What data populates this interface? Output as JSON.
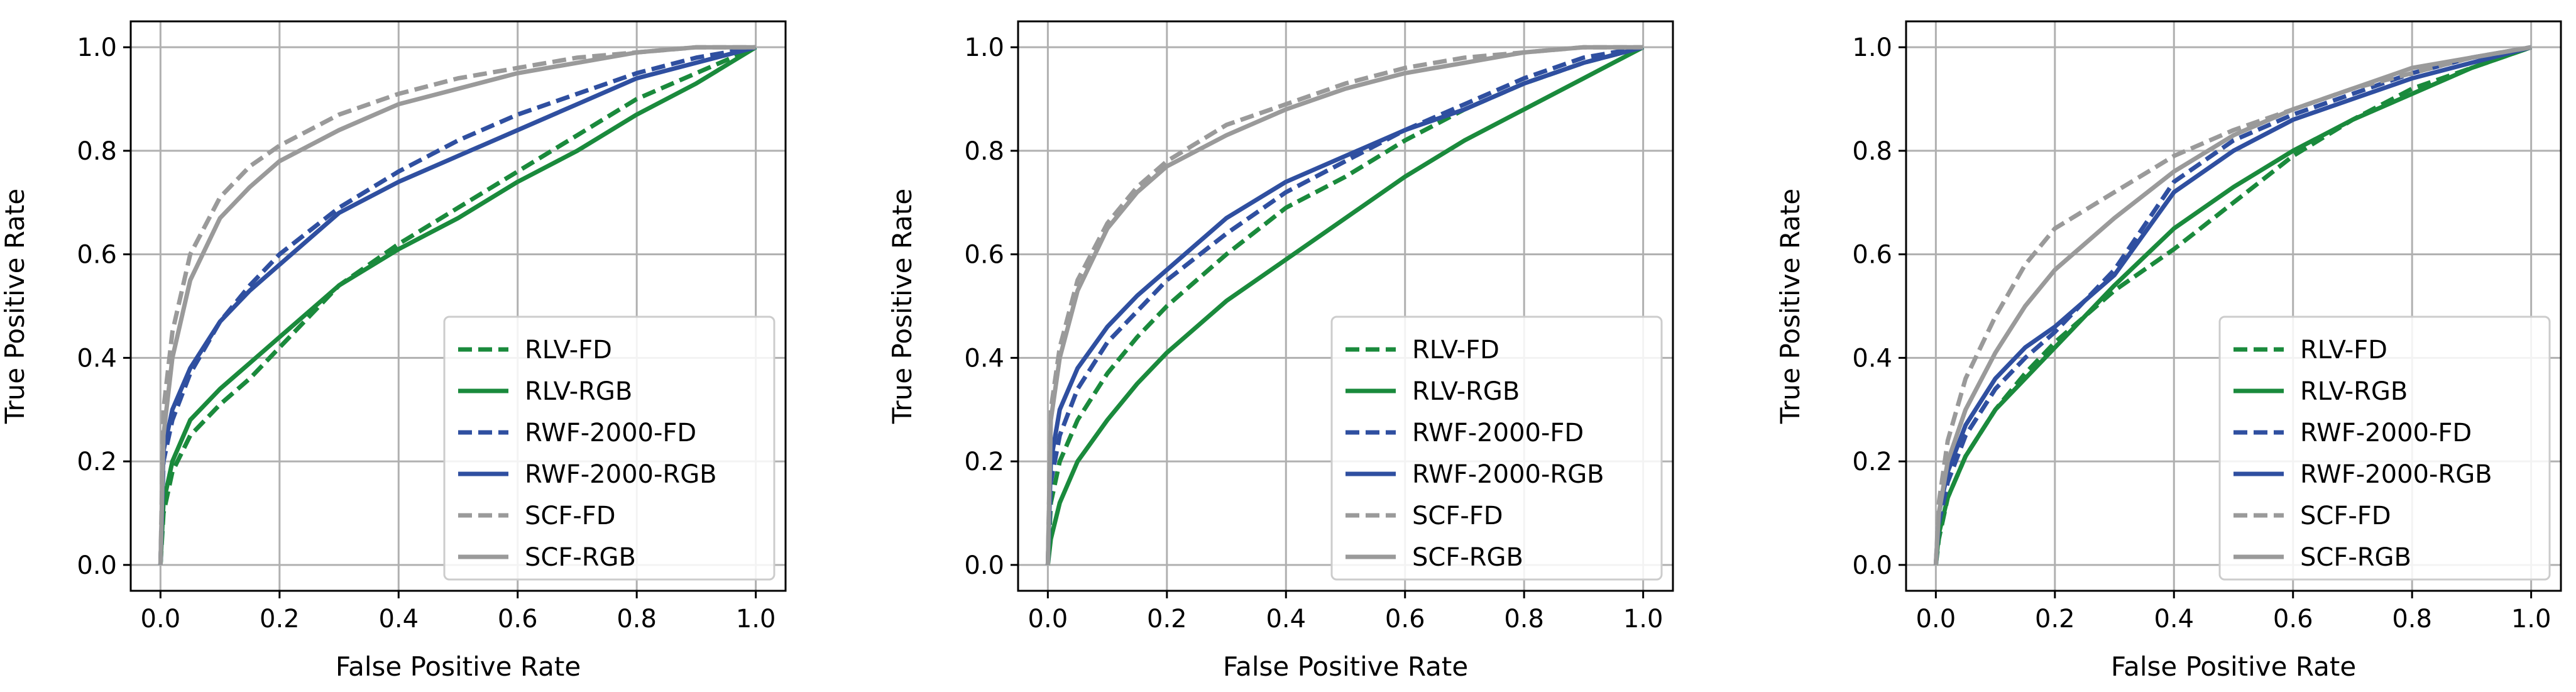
{
  "chart_data": [
    {
      "type": "line",
      "title": "",
      "xlabel": "False Positive Rate",
      "ylabel": "True Positive Rate",
      "xlim": [
        -0.05,
        1.05
      ],
      "ylim": [
        -0.05,
        1.05
      ],
      "xticks": [
        0.0,
        0.2,
        0.4,
        0.6,
        0.8,
        1.0
      ],
      "yticks": [
        0.0,
        0.2,
        0.4,
        0.6,
        0.8,
        1.0
      ],
      "tick_labels": [
        "0.0",
        "0.2",
        "0.4",
        "0.6",
        "0.8",
        "1.0"
      ],
      "grid": true,
      "legend_position": "lower-right",
      "series": [
        {
          "name": "RLV-FD",
          "color": "#1a8a3c",
          "style": "dashed",
          "x": [
            0,
            0.005,
            0.02,
            0.05,
            0.1,
            0.15,
            0.2,
            0.3,
            0.4,
            0.5,
            0.6,
            0.7,
            0.8,
            0.9,
            1.0
          ],
          "y": [
            0,
            0.1,
            0.18,
            0.25,
            0.31,
            0.36,
            0.42,
            0.54,
            0.62,
            0.69,
            0.76,
            0.83,
            0.9,
            0.95,
            1.0
          ]
        },
        {
          "name": "RLV-RGB",
          "color": "#1a8a3c",
          "style": "solid",
          "x": [
            0,
            0.005,
            0.02,
            0.05,
            0.1,
            0.15,
            0.2,
            0.3,
            0.4,
            0.5,
            0.6,
            0.7,
            0.8,
            0.9,
            1.0
          ],
          "y": [
            0,
            0.12,
            0.2,
            0.28,
            0.34,
            0.39,
            0.44,
            0.54,
            0.61,
            0.67,
            0.74,
            0.8,
            0.87,
            0.93,
            1.0
          ]
        },
        {
          "name": "RWF-2000-FD",
          "color": "#2f4fa0",
          "style": "dashed",
          "x": [
            0,
            0.005,
            0.02,
            0.05,
            0.1,
            0.15,
            0.2,
            0.3,
            0.4,
            0.5,
            0.6,
            0.7,
            0.8,
            0.9,
            1.0
          ],
          "y": [
            0,
            0.2,
            0.28,
            0.37,
            0.47,
            0.54,
            0.6,
            0.69,
            0.76,
            0.82,
            0.87,
            0.91,
            0.95,
            0.98,
            1.0
          ]
        },
        {
          "name": "RWF-2000-RGB",
          "color": "#2f4fa0",
          "style": "solid",
          "x": [
            0,
            0.005,
            0.02,
            0.05,
            0.1,
            0.15,
            0.2,
            0.3,
            0.4,
            0.5,
            0.6,
            0.7,
            0.8,
            0.9,
            1.0
          ],
          "y": [
            0,
            0.22,
            0.3,
            0.38,
            0.47,
            0.53,
            0.58,
            0.68,
            0.74,
            0.79,
            0.84,
            0.89,
            0.94,
            0.97,
            1.0
          ]
        },
        {
          "name": "SCF-FD",
          "color": "#9a9a9a",
          "style": "dashed",
          "x": [
            0,
            0.005,
            0.02,
            0.05,
            0.1,
            0.15,
            0.2,
            0.3,
            0.4,
            0.5,
            0.6,
            0.7,
            0.8,
            0.9,
            1.0
          ],
          "y": [
            0,
            0.3,
            0.45,
            0.6,
            0.71,
            0.77,
            0.81,
            0.87,
            0.91,
            0.94,
            0.96,
            0.98,
            0.99,
            1.0,
            1.0
          ]
        },
        {
          "name": "SCF-RGB",
          "color": "#9a9a9a",
          "style": "solid",
          "x": [
            0,
            0.005,
            0.02,
            0.05,
            0.1,
            0.15,
            0.2,
            0.3,
            0.4,
            0.5,
            0.6,
            0.7,
            0.8,
            0.9,
            1.0
          ],
          "y": [
            0,
            0.25,
            0.4,
            0.55,
            0.67,
            0.73,
            0.78,
            0.84,
            0.89,
            0.92,
            0.95,
            0.97,
            0.99,
            1.0,
            1.0
          ]
        }
      ]
    },
    {
      "type": "line",
      "title": "",
      "xlabel": "False Positive Rate",
      "ylabel": "True Positive Rate",
      "xlim": [
        -0.05,
        1.05
      ],
      "ylim": [
        -0.05,
        1.05
      ],
      "xticks": [
        0.0,
        0.2,
        0.4,
        0.6,
        0.8,
        1.0
      ],
      "yticks": [
        0.0,
        0.2,
        0.4,
        0.6,
        0.8,
        1.0
      ],
      "tick_labels": [
        "0.0",
        "0.2",
        "0.4",
        "0.6",
        "0.8",
        "1.0"
      ],
      "grid": true,
      "legend_position": "lower-right",
      "series": [
        {
          "name": "RLV-FD",
          "color": "#1a8a3c",
          "style": "dashed",
          "x": [
            0,
            0.005,
            0.02,
            0.05,
            0.1,
            0.15,
            0.2,
            0.3,
            0.4,
            0.5,
            0.6,
            0.7,
            0.8,
            0.9,
            1.0
          ],
          "y": [
            0,
            0.12,
            0.2,
            0.28,
            0.37,
            0.44,
            0.5,
            0.6,
            0.69,
            0.75,
            0.82,
            0.88,
            0.93,
            0.97,
            1.0
          ]
        },
        {
          "name": "RLV-RGB",
          "color": "#1a8a3c",
          "style": "solid",
          "x": [
            0,
            0.005,
            0.02,
            0.05,
            0.1,
            0.15,
            0.2,
            0.3,
            0.4,
            0.5,
            0.6,
            0.7,
            0.8,
            0.9,
            1.0
          ],
          "y": [
            0,
            0.05,
            0.12,
            0.2,
            0.28,
            0.35,
            0.41,
            0.51,
            0.59,
            0.67,
            0.75,
            0.82,
            0.88,
            0.94,
            1.0
          ]
        },
        {
          "name": "RWF-2000-FD",
          "color": "#2f4fa0",
          "style": "dashed",
          "x": [
            0,
            0.005,
            0.02,
            0.05,
            0.1,
            0.15,
            0.2,
            0.3,
            0.4,
            0.5,
            0.6,
            0.7,
            0.8,
            0.9,
            1.0
          ],
          "y": [
            0,
            0.16,
            0.25,
            0.34,
            0.43,
            0.49,
            0.55,
            0.64,
            0.72,
            0.78,
            0.84,
            0.89,
            0.94,
            0.98,
            1.0
          ]
        },
        {
          "name": "RWF-2000-RGB",
          "color": "#2f4fa0",
          "style": "solid",
          "x": [
            0,
            0.005,
            0.02,
            0.05,
            0.1,
            0.15,
            0.2,
            0.3,
            0.4,
            0.5,
            0.6,
            0.7,
            0.8,
            0.9,
            1.0
          ],
          "y": [
            0,
            0.2,
            0.3,
            0.38,
            0.46,
            0.52,
            0.57,
            0.67,
            0.74,
            0.79,
            0.84,
            0.88,
            0.93,
            0.97,
            1.0
          ]
        },
        {
          "name": "SCF-FD",
          "color": "#9a9a9a",
          "style": "dashed",
          "x": [
            0,
            0.005,
            0.02,
            0.05,
            0.1,
            0.15,
            0.2,
            0.3,
            0.4,
            0.5,
            0.6,
            0.7,
            0.8,
            0.9,
            1.0
          ],
          "y": [
            0,
            0.3,
            0.42,
            0.55,
            0.66,
            0.73,
            0.78,
            0.85,
            0.89,
            0.93,
            0.96,
            0.98,
            0.99,
            1.0,
            1.0
          ]
        },
        {
          "name": "SCF-RGB",
          "color": "#9a9a9a",
          "style": "solid",
          "x": [
            0,
            0.005,
            0.02,
            0.05,
            0.1,
            0.15,
            0.2,
            0.3,
            0.4,
            0.5,
            0.6,
            0.7,
            0.8,
            0.9,
            1.0
          ],
          "y": [
            0,
            0.28,
            0.4,
            0.53,
            0.65,
            0.72,
            0.77,
            0.83,
            0.88,
            0.92,
            0.95,
            0.97,
            0.99,
            1.0,
            1.0
          ]
        }
      ]
    },
    {
      "type": "line",
      "title": "",
      "xlabel": "False Positive Rate",
      "ylabel": "True Positive Rate",
      "xlim": [
        -0.05,
        1.05
      ],
      "ylim": [
        -0.05,
        1.05
      ],
      "xticks": [
        0.0,
        0.2,
        0.4,
        0.6,
        0.8,
        1.0
      ],
      "yticks": [
        0.0,
        0.2,
        0.4,
        0.6,
        0.8,
        1.0
      ],
      "tick_labels": [
        "0.0",
        "0.2",
        "0.4",
        "0.6",
        "0.8",
        "1.0"
      ],
      "grid": true,
      "legend_position": "lower-right",
      "series": [
        {
          "name": "RLV-FD",
          "color": "#1a8a3c",
          "style": "dashed",
          "x": [
            0,
            0.005,
            0.02,
            0.05,
            0.1,
            0.15,
            0.2,
            0.3,
            0.4,
            0.5,
            0.6,
            0.7,
            0.8,
            0.9,
            1.0
          ],
          "y": [
            0,
            0.05,
            0.13,
            0.21,
            0.3,
            0.37,
            0.43,
            0.53,
            0.61,
            0.7,
            0.79,
            0.86,
            0.92,
            0.96,
            1.0
          ]
        },
        {
          "name": "RLV-RGB",
          "color": "#1a8a3c",
          "style": "solid",
          "x": [
            0,
            0.005,
            0.02,
            0.05,
            0.1,
            0.15,
            0.2,
            0.3,
            0.4,
            0.5,
            0.6,
            0.7,
            0.8,
            0.9,
            1.0
          ],
          "y": [
            0,
            0.06,
            0.13,
            0.21,
            0.3,
            0.36,
            0.42,
            0.54,
            0.65,
            0.73,
            0.8,
            0.86,
            0.91,
            0.96,
            1.0
          ]
        },
        {
          "name": "RWF-2000-FD",
          "color": "#2f4fa0",
          "style": "dashed",
          "x": [
            0,
            0.005,
            0.02,
            0.05,
            0.1,
            0.15,
            0.2,
            0.3,
            0.4,
            0.5,
            0.6,
            0.7,
            0.8,
            0.9,
            1.0
          ],
          "y": [
            0,
            0.08,
            0.16,
            0.25,
            0.34,
            0.4,
            0.45,
            0.57,
            0.74,
            0.82,
            0.87,
            0.91,
            0.95,
            0.98,
            1.0
          ]
        },
        {
          "name": "RWF-2000-RGB",
          "color": "#2f4fa0",
          "style": "solid",
          "x": [
            0,
            0.005,
            0.02,
            0.05,
            0.1,
            0.15,
            0.2,
            0.3,
            0.4,
            0.5,
            0.6,
            0.7,
            0.8,
            0.9,
            1.0
          ],
          "y": [
            0,
            0.1,
            0.18,
            0.27,
            0.36,
            0.42,
            0.46,
            0.56,
            0.72,
            0.8,
            0.86,
            0.9,
            0.94,
            0.97,
            1.0
          ]
        },
        {
          "name": "SCF-FD",
          "color": "#9a9a9a",
          "style": "dashed",
          "x": [
            0,
            0.005,
            0.02,
            0.05,
            0.1,
            0.15,
            0.2,
            0.3,
            0.4,
            0.5,
            0.6,
            0.7,
            0.8,
            0.9,
            1.0
          ],
          "y": [
            0,
            0.12,
            0.24,
            0.36,
            0.48,
            0.58,
            0.65,
            0.72,
            0.79,
            0.84,
            0.88,
            0.92,
            0.95,
            0.98,
            1.0
          ]
        },
        {
          "name": "SCF-RGB",
          "color": "#9a9a9a",
          "style": "solid",
          "x": [
            0,
            0.005,
            0.02,
            0.05,
            0.1,
            0.15,
            0.2,
            0.3,
            0.4,
            0.5,
            0.6,
            0.7,
            0.8,
            0.9,
            1.0
          ],
          "y": [
            0,
            0.1,
            0.2,
            0.3,
            0.41,
            0.5,
            0.57,
            0.67,
            0.76,
            0.83,
            0.88,
            0.92,
            0.96,
            0.98,
            1.0
          ]
        }
      ]
    }
  ]
}
